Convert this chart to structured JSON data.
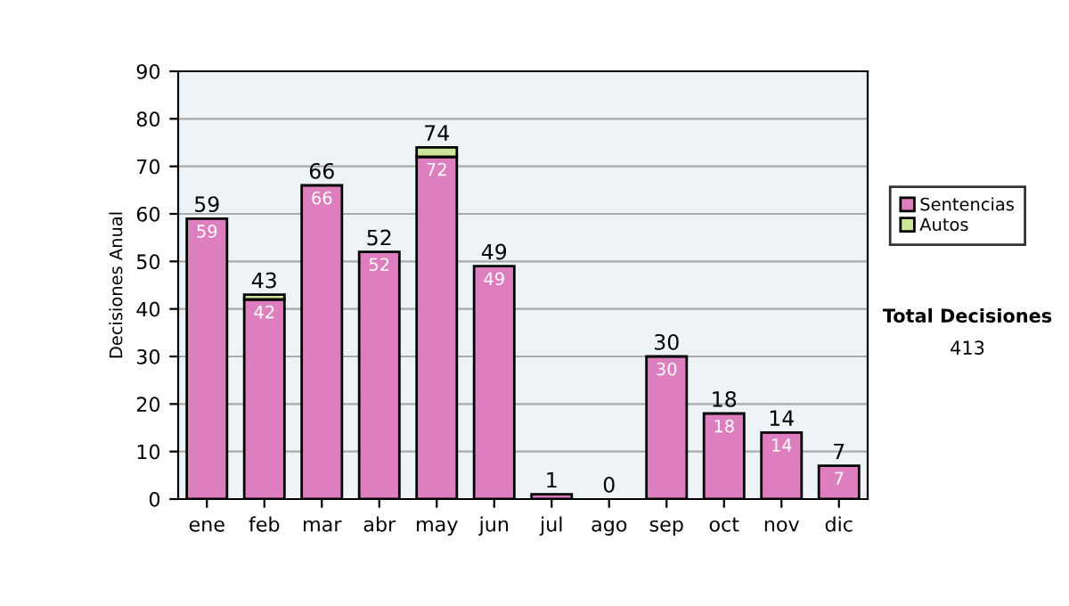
{
  "chart_data": {
    "type": "bar",
    "stacked": true,
    "categories": [
      "ene",
      "feb",
      "mar",
      "abr",
      "may",
      "jun",
      "jul",
      "ago",
      "sep",
      "oct",
      "nov",
      "dic"
    ],
    "series": [
      {
        "name": "Sentencias",
        "color": "#dd7fbf",
        "values": [
          59,
          42,
          66,
          52,
          72,
          49,
          1,
          0,
          30,
          18,
          14,
          7
        ],
        "value_labels": [
          "59",
          "42",
          "66",
          "52",
          "72",
          "49",
          null,
          null,
          "30",
          "18",
          "14",
          "7"
        ]
      },
      {
        "name": "Autos",
        "color": "#cce699",
        "values": [
          0,
          1,
          0,
          0,
          2,
          0,
          0,
          0,
          0,
          0,
          0,
          0
        ]
      }
    ],
    "totals": [
      "59",
      "43",
      "66",
      "52",
      "74",
      "49",
      "1",
      "0",
      "30",
      "18",
      "14",
      "7"
    ],
    "ylabel": "Decisiones Anual",
    "ylim": [
      0,
      90
    ],
    "yticks": [
      0,
      10,
      20,
      30,
      40,
      50,
      60,
      70,
      80,
      90
    ],
    "grid": "y",
    "legend": "right",
    "annotations": [
      "Total Decisiones",
      "413"
    ]
  }
}
